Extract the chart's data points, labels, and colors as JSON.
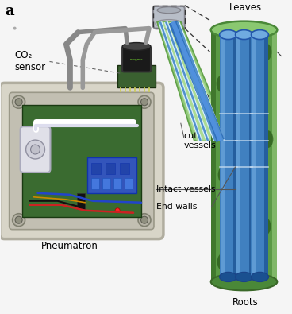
{
  "panel_label": "a",
  "background_color": "#f5f5f5",
  "labels": {
    "co2_sensor": "CO₂\nsensor",
    "pneumatron": "Pneumatron",
    "cut_vessels": "cut\nvessels",
    "intact_vessels": "Intact vessels",
    "end_walls": "End walls",
    "leaves": "Leaves",
    "roots": "Roots"
  },
  "colors": {
    "box_outer": "#dddbd0",
    "box_fill": "#ccc9be",
    "box_inner_fill": "#b8b5aa",
    "pcb_green": "#3a6b30",
    "pcb_dark": "#2a4a22",
    "vessel_green_outer": "#7ab860",
    "vessel_green_mid": "#5a9a45",
    "vessel_green_dark": "#3a7028",
    "vessel_blue": "#4080c0",
    "vessel_blue_light": "#70aae0",
    "vessel_blue_dark": "#1a5090",
    "vessel_blue_mid": "#3570b0",
    "cut_tube_green": "#90c878",
    "cut_tube_white": "#e0eeff",
    "cut_tube_blue": "#80aadd",
    "dashed": "#444444",
    "label_line": "#555555",
    "wire_red": "#cc2222",
    "wire_blue": "#2244cc",
    "sensor_black": "#1a1a1a",
    "sensor_green": "#3a6030"
  },
  "figsize": [
    3.68,
    3.95
  ],
  "dpi": 100
}
